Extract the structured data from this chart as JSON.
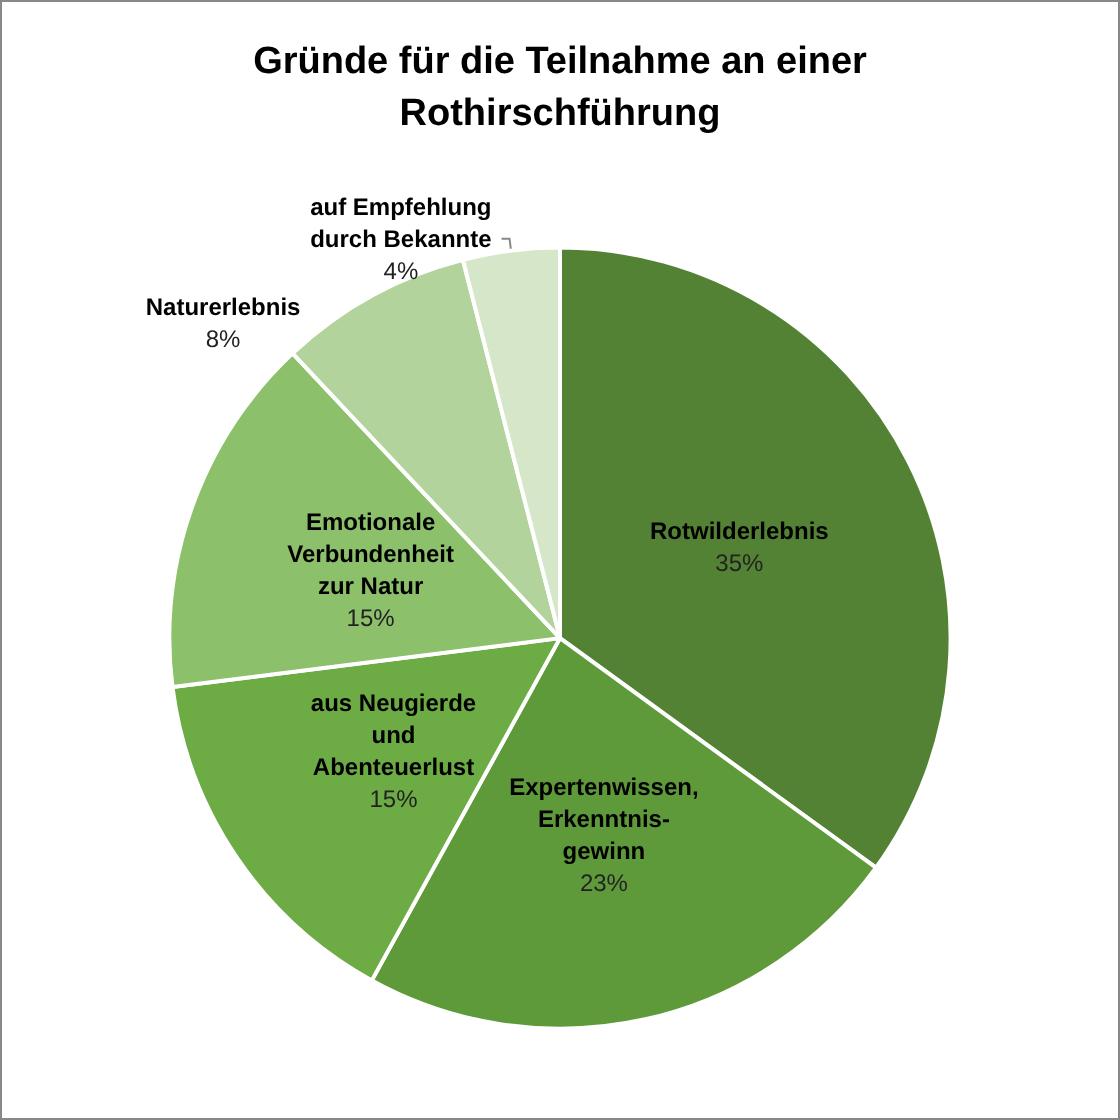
{
  "chart_data": {
    "type": "pie",
    "title": "Gründe für die Teilnahme an einer\nRothirschführung",
    "categories": [
      "Rotwilderlebnis",
      "Expertenwissen,\nErkenntnis-\ngewinn",
      "aus Neugierde\nund\nAbenteuerlust",
      "Emotionale\nVerbundenheit\nzur Natur",
      "Naturerlebnis",
      "auf Empfehlung\ndurch Bekannte"
    ],
    "values": [
      35,
      23,
      15,
      15,
      8,
      4
    ],
    "value_labels": [
      "35%",
      "23%",
      "15%",
      "15%",
      "8%",
      "4%"
    ],
    "colors": [
      "#548235",
      "#5f9a3a",
      "#6dab45",
      "#8cc06a",
      "#b2d49c",
      "#d5e7c8"
    ],
    "legend": false
  }
}
